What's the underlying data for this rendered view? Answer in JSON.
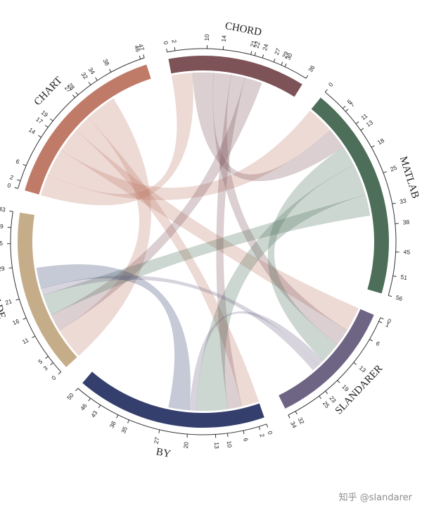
{
  "watermark": "知乎 @slandarer",
  "chart_data": {
    "type": "chord",
    "title": "",
    "groups": [
      {
        "name": "CHART",
        "total": 47,
        "color": "#c07a68",
        "ticks": [
          0,
          2,
          6,
          14,
          17,
          19,
          27,
          28,
          32,
          34,
          38,
          46,
          47
        ]
      },
      {
        "name": "CHORD",
        "total": 36,
        "color": "#7e5358",
        "ticks": [
          0,
          2,
          10,
          14,
          21,
          22,
          24,
          27,
          29,
          30,
          36
        ]
      },
      {
        "name": "MATLAB",
        "total": 56,
        "color": "#4d6e58",
        "ticks": [
          0,
          6,
          7,
          11,
          13,
          18,
          25,
          33,
          38,
          45,
          51,
          56
        ]
      },
      {
        "name": "SLANDARER",
        "total": 34,
        "color": "#6e6585",
        "ticks": [
          0,
          1,
          6,
          13,
          19,
          23,
          25,
          32,
          34
        ]
      },
      {
        "name": "BY",
        "total": 50,
        "color": "#343f6d",
        "ticks": [
          0,
          2,
          6,
          10,
          13,
          20,
          27,
          35,
          38,
          43,
          46,
          50
        ]
      },
      {
        "name": "MADE",
        "total": 43,
        "color": "#c6ad8a",
        "ticks": [
          0,
          3,
          5,
          11,
          16,
          21,
          29,
          35,
          39,
          43
        ]
      }
    ],
    "links": [
      {
        "source": "CHART",
        "target": "CHORD",
        "value": 6
      },
      {
        "source": "CHART",
        "target": "MATLAB",
        "value": 8
      },
      {
        "source": "CHART",
        "target": "SLANDARER",
        "value": 7
      },
      {
        "source": "CHART",
        "target": "BY",
        "value": 5
      },
      {
        "source": "CHART",
        "target": "MADE",
        "value": 9
      },
      {
        "source": "CHORD",
        "target": "MATLAB",
        "value": 6
      },
      {
        "source": "CHORD",
        "target": "SLANDARER",
        "value": 5
      },
      {
        "source": "CHORD",
        "target": "BY",
        "value": 4
      },
      {
        "source": "CHORD",
        "target": "MADE",
        "value": 5
      },
      {
        "source": "MATLAB",
        "target": "SLANDARER",
        "value": 6
      },
      {
        "source": "MATLAB",
        "target": "BY",
        "value": 9
      },
      {
        "source": "MATLAB",
        "target": "MADE",
        "value": 6
      },
      {
        "source": "SLANDARER",
        "target": "BY",
        "value": 2
      },
      {
        "source": "SLANDARER",
        "target": "MADE",
        "value": 2
      },
      {
        "source": "BY",
        "target": "MADE",
        "value": 6
      }
    ]
  }
}
